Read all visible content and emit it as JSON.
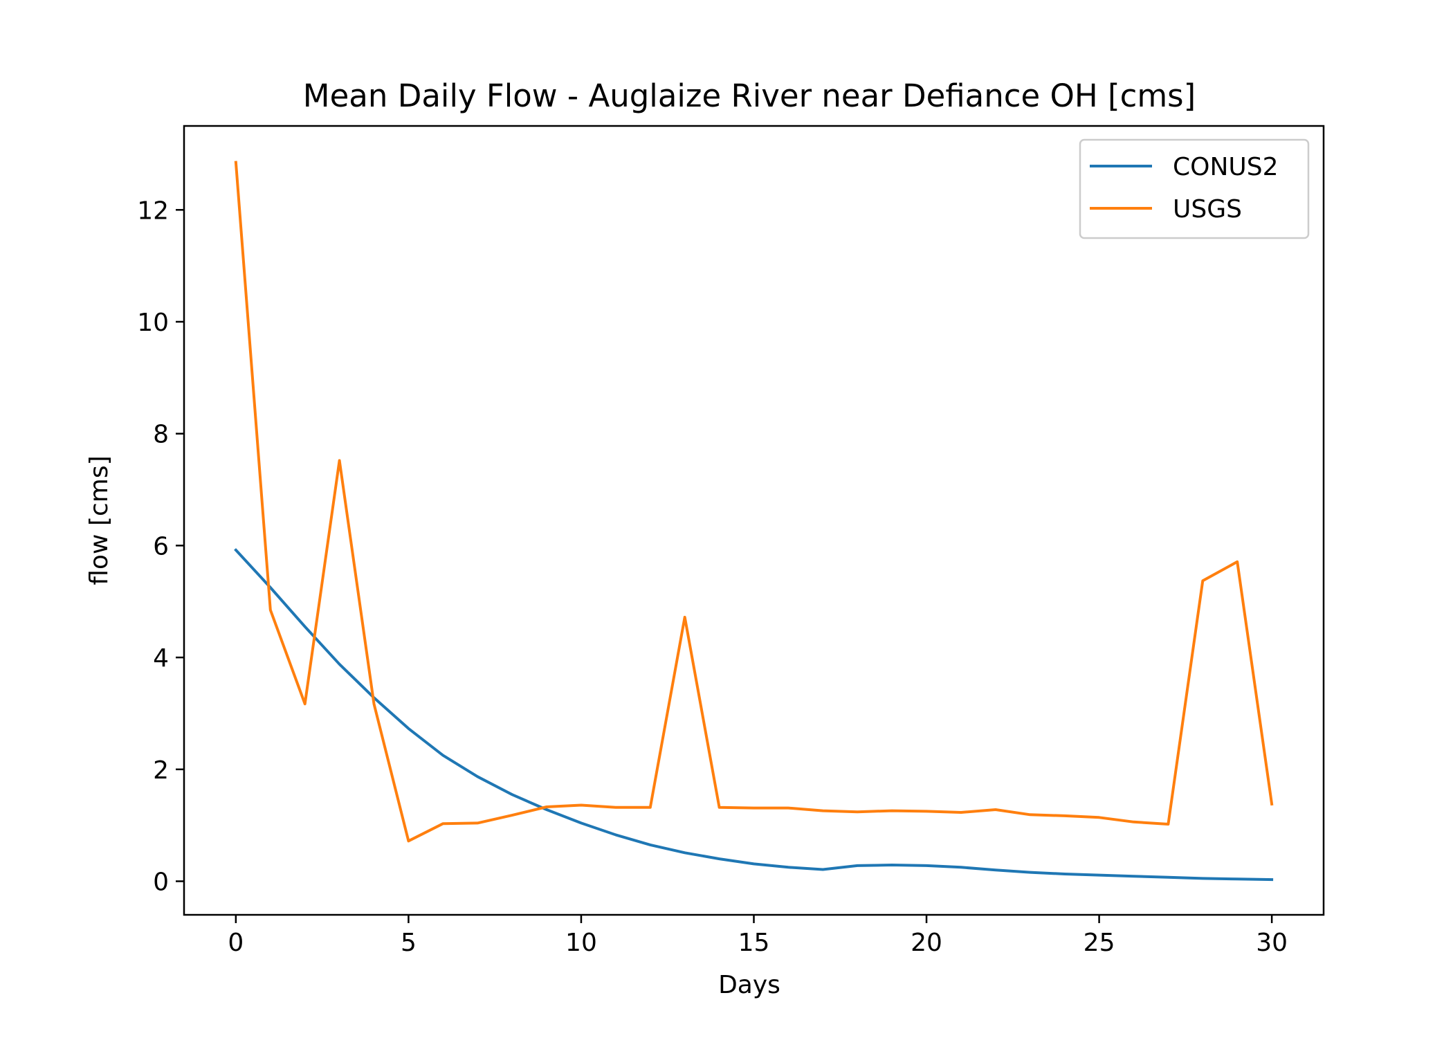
{
  "chart_data": {
    "type": "line",
    "title": "Mean Daily Flow - Auglaize River near Defiance OH [cms]",
    "xlabel": "Days",
    "ylabel": "flow [cms]",
    "xlim": [
      -1.5,
      31.5
    ],
    "ylim": [
      -0.6,
      13.5
    ],
    "xticks": [
      0,
      5,
      10,
      15,
      20,
      25,
      30
    ],
    "yticks": [
      0,
      2,
      4,
      6,
      8,
      10,
      12
    ],
    "grid": false,
    "legend_position": "top-right",
    "x": [
      0,
      1,
      2,
      3,
      4,
      5,
      6,
      7,
      8,
      9,
      10,
      11,
      12,
      13,
      14,
      15,
      16,
      17,
      18,
      19,
      20,
      21,
      22,
      23,
      24,
      25,
      26,
      27,
      28,
      29,
      30
    ],
    "series": [
      {
        "name": "CONUS2",
        "color": "#1f77b4",
        "values": [
          5.92,
          5.25,
          4.55,
          3.88,
          3.28,
          2.73,
          2.25,
          1.87,
          1.55,
          1.28,
          1.04,
          0.83,
          0.65,
          0.51,
          0.4,
          0.31,
          0.25,
          0.21,
          0.28,
          0.29,
          0.28,
          0.25,
          0.2,
          0.16,
          0.13,
          0.11,
          0.09,
          0.07,
          0.05,
          0.04,
          0.03
        ]
      },
      {
        "name": "USGS",
        "color": "#ff7f0e",
        "values": [
          12.85,
          4.85,
          3.17,
          7.52,
          3.17,
          0.72,
          1.03,
          1.04,
          1.18,
          1.33,
          1.36,
          1.32,
          1.32,
          4.72,
          1.32,
          1.31,
          1.31,
          1.26,
          1.24,
          1.26,
          1.25,
          1.23,
          1.28,
          1.19,
          1.17,
          1.14,
          1.06,
          1.02,
          5.37,
          5.71,
          1.38
        ]
      }
    ]
  }
}
